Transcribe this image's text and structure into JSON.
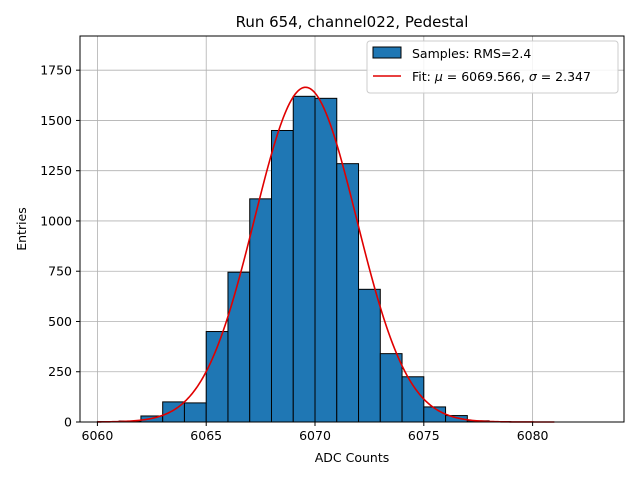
{
  "chart_data": {
    "type": "bar",
    "title": "Run 654, channel022, Pedestal",
    "xlabel": "ADC Counts",
    "ylabel": "Entries",
    "xlim": [
      6059.2,
      6084.2
    ],
    "ylim": [
      0,
      1920
    ],
    "grid": true,
    "legend_position": "top-right",
    "x_ticks": [
      6060,
      6065,
      6070,
      6075,
      6080
    ],
    "y_ticks": [
      0,
      250,
      500,
      750,
      1000,
      1250,
      1500,
      1750
    ],
    "bin_width": 1,
    "histogram": {
      "name": "Samples: RMS=2.4",
      "color": "#1f77b4",
      "edge_color": "#000000",
      "bins": [
        {
          "start": 6060,
          "value": 2
        },
        {
          "start": 6061,
          "value": 5
        },
        {
          "start": 6062,
          "value": 30
        },
        {
          "start": 6063,
          "value": 100
        },
        {
          "start": 6064,
          "value": 95
        },
        {
          "start": 6065,
          "value": 450
        },
        {
          "start": 6066,
          "value": 745
        },
        {
          "start": 6067,
          "value": 1110
        },
        {
          "start": 6068,
          "value": 1450
        },
        {
          "start": 6069,
          "value": 1620
        },
        {
          "start": 6070,
          "value": 1610
        },
        {
          "start": 6071,
          "value": 1285
        },
        {
          "start": 6072,
          "value": 660
        },
        {
          "start": 6073,
          "value": 340
        },
        {
          "start": 6074,
          "value": 225
        },
        {
          "start": 6075,
          "value": 75
        },
        {
          "start": 6076,
          "value": 32
        },
        {
          "start": 6077,
          "value": 6
        },
        {
          "start": 6078,
          "value": 2
        }
      ]
    },
    "fit": {
      "name": "Fit: μ = 6069.566, σ = 2.347",
      "name_parts": [
        "Fit: ",
        "μ",
        " = 6069.566, ",
        "σ",
        " = 2.347"
      ],
      "color": "#e00000",
      "mu": 6069.566,
      "sigma": 2.347,
      "amplitude": 1665,
      "x_range": [
        6060,
        6081
      ]
    }
  }
}
